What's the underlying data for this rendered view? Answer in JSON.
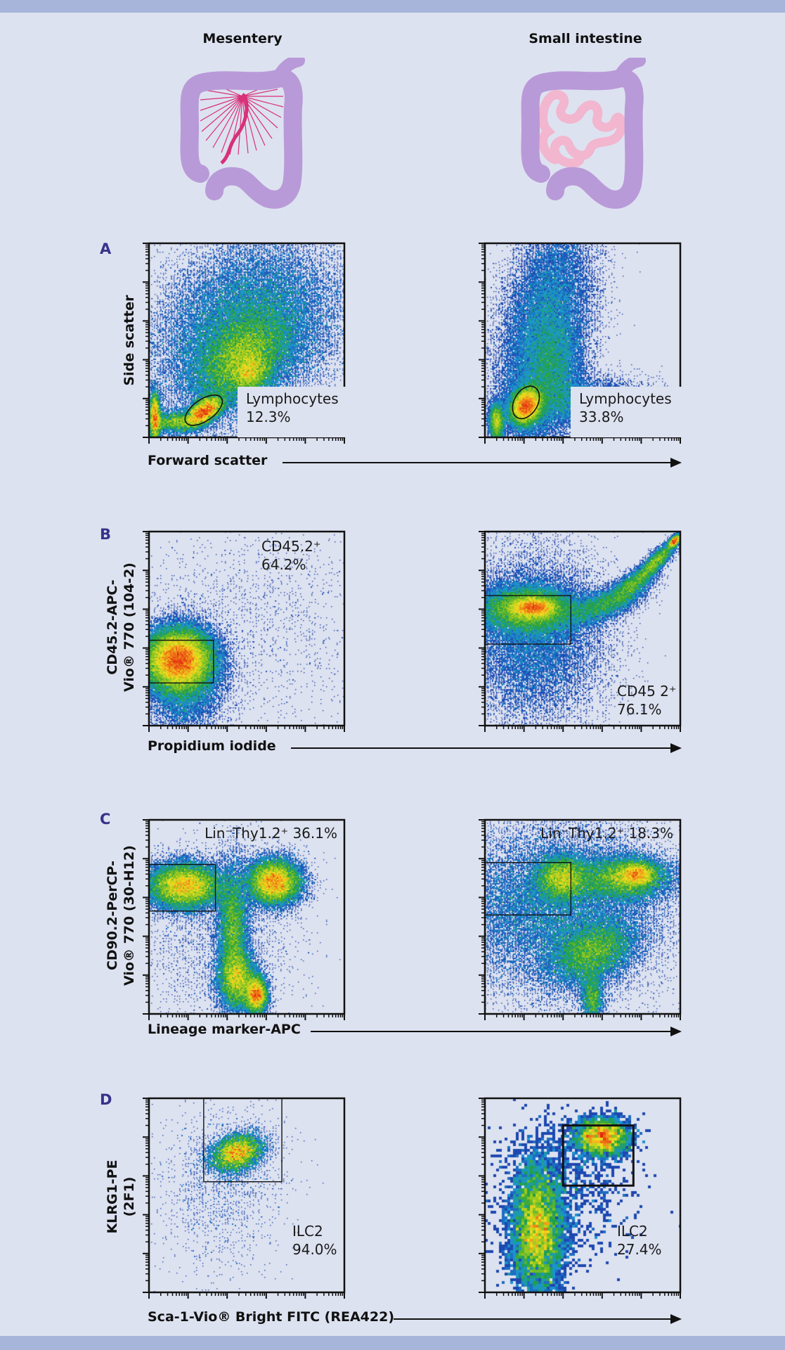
{
  "header": {
    "left_title": "Mesentery",
    "right_title": "Small intestine"
  },
  "colors": {
    "background": "#dde2f0",
    "band": "#a7b5da",
    "panel_letter": "#36338a",
    "colon": "#b99ad8",
    "mesentery": "#d8307a",
    "intestine": "#f2b6cf"
  },
  "chart_data": {
    "type": "scatter",
    "subtype": "flow cytometry density plot",
    "rows": [
      {
        "letter": "A",
        "xlabel": "Forward scatter",
        "ylabel": [
          "Side scatter"
        ],
        "plots": [
          {
            "column": "Mesentery",
            "gate": {
              "label": "Lymphocytes",
              "percent": "12.3%",
              "shape": "ellipse",
              "cx": 28,
              "cy": 14,
              "rx": 11,
              "ry": 5.5,
              "angle": 35
            },
            "populations": [
              {
                "x": 50,
                "y": 55,
                "sx": 26,
                "sy": 20,
                "angle": 45,
                "w": 0.5
              },
              {
                "x": 47,
                "y": 40,
                "sx": 14,
                "sy": 9,
                "angle": 40,
                "w": 0.22
              },
              {
                "x": 52,
                "y": 33,
                "sx": 6,
                "sy": 5,
                "angle": 40,
                "w": 0.06
              },
              {
                "x": 28,
                "y": 13,
                "sx": 6,
                "sy": 3,
                "angle": 35,
                "w": 0.12
              },
              {
                "x": 3,
                "y": 10,
                "sx": 1.5,
                "sy": 7,
                "angle": 0,
                "w": 0.06
              },
              {
                "x": 12,
                "y": 8,
                "sx": 6,
                "sy": 3,
                "angle": 0,
                "w": 0.04
              }
            ]
          },
          {
            "column": "Small intestine",
            "gate": {
              "label": "Lymphocytes",
              "percent": "33.8%",
              "shape": "ellipse",
              "cx": 21,
              "cy": 18,
              "rx": 6,
              "ry": 9,
              "angle": -30
            },
            "populations": [
              {
                "x": 30,
                "y": 55,
                "sx": 11,
                "sy": 32,
                "angle": -12,
                "w": 0.38
              },
              {
                "x": 35,
                "y": 32,
                "sx": 8,
                "sy": 16,
                "angle": -10,
                "w": 0.15
              },
              {
                "x": 55,
                "y": 18,
                "sx": 16,
                "sy": 6,
                "angle": 0,
                "w": 0.1
              },
              {
                "x": 21,
                "y": 16,
                "sx": 4,
                "sy": 5,
                "angle": -25,
                "w": 0.28
              },
              {
                "x": 6,
                "y": 8,
                "sx": 2,
                "sy": 5,
                "angle": 0,
                "w": 0.06
              }
            ]
          }
        ]
      },
      {
        "letter": "B",
        "xlabel": "Propidium iodide",
        "ylabel": [
          "CD45.2-APC-",
          "Vio® 770 (104-2)"
        ],
        "plots": [
          {
            "column": "Mesentery",
            "gate": {
              "label": "CD45.2⁺",
              "percent": "64.2%",
              "shape": "rect",
              "x0": 0,
              "x1": 33,
              "y0": 22,
              "y1": 44
            },
            "populations": [
              {
                "x": 15,
                "y": 34,
                "sx": 9,
                "sy": 8,
                "angle": 0,
                "w": 0.75
              },
              {
                "x": 18,
                "y": 22,
                "sx": 10,
                "sy": 14,
                "angle": 0,
                "w": 0.15
              },
              {
                "x": 50,
                "y": 50,
                "sx": 40,
                "sy": 30,
                "angle": 0,
                "w": 0.03
              }
            ]
          },
          {
            "column": "Small intestine",
            "gate": {
              "label": "CD45 2⁺",
              "percent": "76.1%",
              "shape": "rect",
              "x0": 0,
              "x1": 44,
              "y0": 42,
              "y1": 67
            },
            "populations": [
              {
                "x": 22,
                "y": 60,
                "sx": 13,
                "sy": 6,
                "angle": 0,
                "w": 0.35
              },
              {
                "x": 25,
                "y": 61,
                "sx": 6,
                "sy": 2.5,
                "angle": 0,
                "w": 0.12
              },
              {
                "x": 25,
                "y": 45,
                "sx": 18,
                "sy": 22,
                "angle": 0,
                "w": 0.25
              },
              {
                "x": 60,
                "y": 62,
                "sx": 10,
                "sy": 4,
                "angle": 20,
                "w": 0.08
              },
              {
                "x": 75,
                "y": 72,
                "sx": 8,
                "sy": 3,
                "angle": 38,
                "w": 0.07
              },
              {
                "x": 88,
                "y": 85,
                "sx": 7,
                "sy": 2,
                "angle": 45,
                "w": 0.06
              },
              {
                "x": 97,
                "y": 95,
                "sx": 2,
                "sy": 1,
                "angle": 45,
                "w": 0.03
              }
            ]
          }
        ]
      },
      {
        "letter": "C",
        "xlabel": "Lineage marker-APC",
        "ylabel": [
          "CD90.2-PerCP-",
          "Vio® 770 (30-H12)"
        ],
        "plots": [
          {
            "column": "Mesentery",
            "gate": {
              "label": "Lin⁻Thy1.2⁺ 36.1%",
              "percent": "36.1%",
              "shape": "rect",
              "x0": 0,
              "x1": 34,
              "y0": 53,
              "y1": 77
            },
            "populations": [
              {
                "x": 18,
                "y": 66,
                "sx": 10,
                "sy": 6,
                "angle": 0,
                "w": 0.3
              },
              {
                "x": 64,
                "y": 68,
                "sx": 7,
                "sy": 6,
                "angle": 0,
                "w": 0.25
              },
              {
                "x": 43,
                "y": 45,
                "sx": 4,
                "sy": 16,
                "angle": 0,
                "w": 0.14
              },
              {
                "x": 45,
                "y": 18,
                "sx": 5,
                "sy": 8,
                "angle": 0,
                "w": 0.14
              },
              {
                "x": 55,
                "y": 10,
                "sx": 3,
                "sy": 5,
                "angle": 0,
                "w": 0.1
              },
              {
                "x": 35,
                "y": 40,
                "sx": 22,
                "sy": 25,
                "angle": 0,
                "w": 0.04
              }
            ]
          },
          {
            "column": "Small intestine",
            "gate": {
              "label": "Lin⁻Thy1.2⁺ 18.3%",
              "percent": "18.3%",
              "shape": "rect",
              "x0": 0,
              "x1": 44,
              "y0": 51,
              "y1": 78
            },
            "populations": [
              {
                "x": 35,
                "y": 55,
                "sx": 28,
                "sy": 22,
                "angle": 0,
                "w": 0.35
              },
              {
                "x": 40,
                "y": 70,
                "sx": 7,
                "sy": 6,
                "angle": 0,
                "w": 0.13
              },
              {
                "x": 72,
                "y": 70,
                "sx": 12,
                "sy": 6,
                "angle": 0,
                "w": 0.18
              },
              {
                "x": 78,
                "y": 72,
                "sx": 5,
                "sy": 3,
                "angle": 0,
                "w": 0.06
              },
              {
                "x": 55,
                "y": 32,
                "sx": 12,
                "sy": 8,
                "angle": 25,
                "w": 0.18
              },
              {
                "x": 55,
                "y": 8,
                "sx": 3,
                "sy": 7,
                "angle": 0,
                "w": 0.04
              }
            ]
          }
        ]
      },
      {
        "letter": "D",
        "xlabel": "Sca-1-Vio® Bright FITC (REA422)",
        "ylabel": [
          "KLRG1-PE",
          "(2F1)"
        ],
        "plots": [
          {
            "column": "Mesentery",
            "gate": {
              "label": "ILC2",
              "percent": "94.0%",
              "shape": "rect",
              "x0": 28,
              "x1": 68,
              "y0": 57,
              "y1": 100
            },
            "populations": [
              {
                "x": 45,
                "y": 72,
                "sx": 7,
                "sy": 4.5,
                "angle": 20,
                "w": 0.82
              },
              {
                "x": 38,
                "y": 55,
                "sx": 16,
                "sy": 22,
                "angle": 0,
                "w": 0.18
              }
            ]
          },
          {
            "column": "Small intestine",
            "gate": {
              "label": "ILC2",
              "percent": "27.4%",
              "shape": "rect",
              "x0": 40,
              "x1": 76,
              "y0": 55,
              "y1": 86
            },
            "populations": [
              {
                "x": 60,
                "y": 80,
                "sx": 7,
                "sy": 5,
                "angle": 0,
                "w": 0.28
              },
              {
                "x": 27,
                "y": 32,
                "sx": 7,
                "sy": 18,
                "angle": 0,
                "w": 0.62
              },
              {
                "x": 40,
                "y": 55,
                "sx": 20,
                "sy": 20,
                "angle": 0,
                "w": 0.1
              }
            ]
          }
        ]
      }
    ]
  }
}
